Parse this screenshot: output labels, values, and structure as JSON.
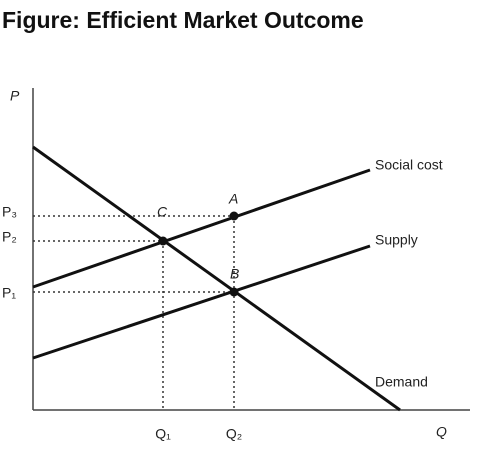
{
  "title": "Figure: Efficient Market Outcome",
  "axes": {
    "y_label": "P",
    "x_label": "Q"
  },
  "curves": {
    "social_cost": "Social cost",
    "supply": "Supply",
    "demand": "Demand"
  },
  "points": {
    "a": "A",
    "b": "B",
    "c": "C"
  },
  "price_labels": [
    "P₃",
    "P₂",
    "P₁"
  ],
  "quantity_labels": [
    "Q₁",
    "Q₂"
  ]
}
